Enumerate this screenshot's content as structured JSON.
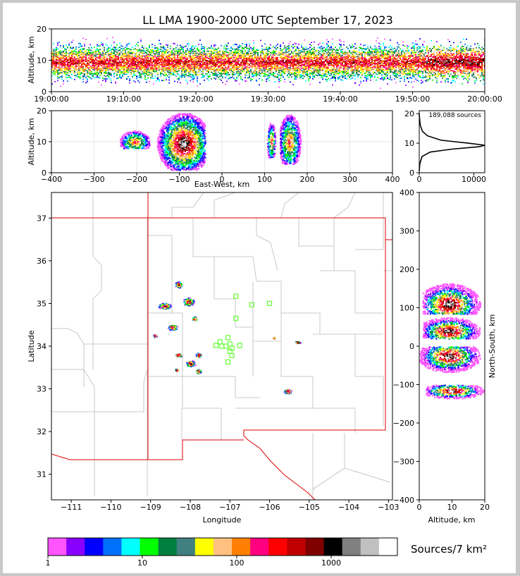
{
  "title": "LL LMA 1900-2000 UTC September 17, 2023",
  "colors": {
    "colorbar": [
      "#ff55ff",
      "#8800ff",
      "#0000ff",
      "#0070ff",
      "#00ffff",
      "#00ff00",
      "#008040",
      "#408080",
      "#ffff00",
      "#ffc080",
      "#ff8000",
      "#ff0080",
      "#ff0000",
      "#c00000",
      "#800000",
      "#000000",
      "#808080",
      "#c0c0c0",
      "#ffffff"
    ],
    "stations": "#66ff33",
    "border": "#dd0000",
    "county": "#bbbbbb"
  },
  "chart_data": [
    {
      "id": "time-height",
      "type": "heatmap",
      "ylabel": "Altitude, km",
      "ylim": [
        0,
        20
      ],
      "y_ticks": [
        "0",
        "10",
        "20"
      ],
      "x_ticks": [
        "19:00:00",
        "19:10:00",
        "19:20:00",
        "19:30:00",
        "19:40:00",
        "19:50:00",
        "20:00:00"
      ],
      "x_range": [
        "19:00:00",
        "20:00:00"
      ]
    },
    {
      "id": "ew-altitude",
      "type": "heatmap",
      "xlabel": "East-West, km",
      "ylabel": "Altitude, km",
      "xlim": [
        -400,
        400
      ],
      "ylim": [
        0,
        20
      ],
      "x_ticks": [
        "−400",
        "−300",
        "−200",
        "−100",
        "0",
        "100",
        "200",
        "300",
        "400"
      ],
      "y_ticks": [
        "0",
        "10",
        "20"
      ],
      "clusters": [
        {
          "x": [
            -160,
            -40
          ],
          "alt": [
            1,
            20
          ],
          "core_x": -90,
          "core_alt": 9.5
        },
        {
          "x": [
            -240,
            -170
          ],
          "alt": [
            8,
            15
          ],
          "core_x": -205,
          "core_alt": 10
        },
        {
          "x": [
            105,
            125
          ],
          "alt": [
            5,
            17
          ],
          "core_x": 115,
          "core_alt": 10
        },
        {
          "x": [
            135,
            185
          ],
          "alt": [
            3,
            20
          ],
          "core_x": 158,
          "core_alt": 10
        }
      ]
    },
    {
      "id": "altitude-histogram",
      "type": "line",
      "annotation": "189,088 sources",
      "xlim": [
        0,
        12000
      ],
      "ylim": [
        0,
        21
      ],
      "x_ticks": [
        "0",
        "10000"
      ],
      "y_ticks": [
        "0",
        "10",
        "20"
      ],
      "x": [
        0,
        100,
        500,
        2000,
        6000,
        11000,
        12000,
        9000,
        4000,
        1500,
        600,
        200,
        50,
        0
      ],
      "y": [
        0.5,
        3,
        5.5,
        7,
        8,
        8.8,
        9.3,
        10,
        11,
        12.5,
        14,
        16,
        18.5,
        20
      ]
    },
    {
      "id": "plan-view",
      "type": "heatmap",
      "xlabel": "Longitude",
      "ylabel": "Latitude",
      "xlim": [
        -111.5,
        -102.9
      ],
      "ylim": [
        30.4,
        37.6
      ],
      "x_ticks": [
        "−111",
        "−110",
        "−109",
        "−108",
        "−107",
        "−106",
        "−105",
        "−104",
        "−103"
      ],
      "y_ticks": [
        "31",
        "32",
        "33",
        "34",
        "35",
        "36",
        "37"
      ],
      "stations": [
        [
          -106.85,
          35.17
        ],
        [
          -106.45,
          34.97
        ],
        [
          -106.0,
          35.0
        ],
        [
          -106.85,
          34.65
        ],
        [
          -107.35,
          34.02
        ],
        [
          -107.25,
          34.1
        ],
        [
          -107.05,
          34.2
        ],
        [
          -107.0,
          34.05
        ],
        [
          -106.95,
          33.95
        ],
        [
          -106.75,
          34.02
        ],
        [
          -107.1,
          34.0
        ],
        [
          -107.2,
          34.0
        ],
        [
          -107.0,
          33.88
        ],
        [
          -106.95,
          33.78
        ],
        [
          -107.05,
          33.63
        ]
      ],
      "storms": [
        {
          "lon": -108.3,
          "lat": 35.45,
          "w": 0.2,
          "h": 0.15
        },
        {
          "lon": -108.05,
          "lat": 35.05,
          "w": 0.3,
          "h": 0.2
        },
        {
          "lon": -108.65,
          "lat": 34.95,
          "w": 0.35,
          "h": 0.15
        },
        {
          "lon": -107.9,
          "lat": 34.65,
          "w": 0.15,
          "h": 0.1
        },
        {
          "lon": -108.45,
          "lat": 34.45,
          "w": 0.25,
          "h": 0.15
        },
        {
          "lon": -108.9,
          "lat": 34.25,
          "w": 0.1,
          "h": 0.08
        },
        {
          "lon": -108.3,
          "lat": 33.8,
          "w": 0.2,
          "h": 0.1
        },
        {
          "lon": -107.8,
          "lat": 33.8,
          "w": 0.15,
          "h": 0.12
        },
        {
          "lon": -108.0,
          "lat": 33.6,
          "w": 0.25,
          "h": 0.15
        },
        {
          "lon": -107.8,
          "lat": 33.42,
          "w": 0.15,
          "h": 0.12
        },
        {
          "lon": -108.35,
          "lat": 33.45,
          "w": 0.1,
          "h": 0.07
        },
        {
          "lon": -105.55,
          "lat": 32.95,
          "w": 0.2,
          "h": 0.12
        },
        {
          "lon": -105.3,
          "lat": 34.1,
          "w": 0.15,
          "h": 0.06
        },
        {
          "lon": -105.9,
          "lat": 34.2,
          "w": 0.08,
          "h": 0.05
        }
      ]
    },
    {
      "id": "altitude-ns",
      "type": "heatmap",
      "xlabel": "Altitude, km",
      "ylabel": "North-South, km",
      "xlim": [
        0,
        20
      ],
      "ylim": [
        -400,
        400
      ],
      "x_ticks": [
        "0",
        "10",
        "20"
      ],
      "y_ticks": [
        "−400",
        "−300",
        "−200",
        "−100",
        "0",
        "100",
        "200",
        "300",
        "400"
      ],
      "clusters": [
        {
          "y": [
            85,
            175
          ],
          "alt": [
            1,
            20
          ],
          "core_y": 110,
          "core_alt": 9
        },
        {
          "y": [
            20,
            80
          ],
          "alt": [
            1,
            20
          ],
          "core_y": 40,
          "core_alt": 9
        },
        {
          "y": [
            -70,
            0
          ],
          "alt": [
            0,
            20
          ],
          "core_y": -25,
          "core_alt": 9
        },
        {
          "y": [
            -135,
            -100
          ],
          "alt": [
            2,
            20
          ],
          "core_y": -115,
          "core_alt": 10
        }
      ]
    }
  ],
  "colorbar": {
    "label": "Sources/7 km²",
    "ticks": [
      "1",
      "10",
      "100",
      "1000"
    ]
  }
}
